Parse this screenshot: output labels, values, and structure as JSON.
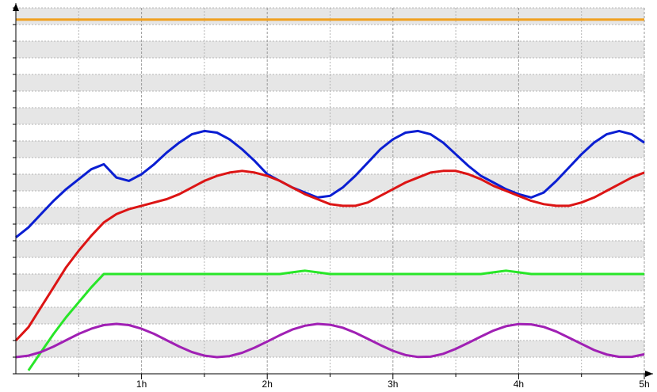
{
  "chart_data": {
    "type": "line",
    "x": [
      0,
      0.1,
      0.2,
      0.3,
      0.4,
      0.5,
      0.6,
      0.7,
      0.8,
      0.9,
      1,
      1.1,
      1.2,
      1.3,
      1.4,
      1.5,
      1.6,
      1.7,
      1.8,
      1.9,
      2,
      2.1,
      2.2,
      2.3,
      2.4,
      2.5,
      2.6,
      2.7,
      2.8,
      2.9,
      3,
      3.1,
      3.2,
      3.3,
      3.4,
      3.5,
      3.6,
      3.7,
      3.8,
      3.9,
      4,
      4.1,
      4.2,
      4.3,
      4.4,
      4.5,
      4.6,
      4.7,
      4.8,
      4.9,
      5
    ],
    "series": [
      {
        "color": "#f0a020",
        "values": [
          21.3,
          21.3,
          21.3,
          21.3,
          21.3,
          21.3,
          21.3,
          21.3,
          21.3,
          21.3,
          21.3,
          21.3,
          21.3,
          21.3,
          21.3,
          21.3,
          21.3,
          21.3,
          21.3,
          21.3,
          21.3,
          21.3,
          21.3,
          21.3,
          21.3,
          21.3,
          21.3,
          21.3,
          21.3,
          21.3,
          21.3,
          21.3,
          21.3,
          21.3,
          21.3,
          21.3,
          21.3,
          21.3,
          21.3,
          21.3,
          21.3,
          21.3,
          21.3,
          21.3,
          21.3,
          21.3,
          21.3,
          21.3,
          21.3,
          21.3,
          21.3
        ]
      },
      {
        "color": "#0a1ed2",
        "values": [
          8.2,
          8.8,
          9.6,
          10.4,
          11.1,
          11.7,
          12.3,
          12.6,
          11.8,
          11.6,
          12.0,
          12.6,
          13.3,
          13.9,
          14.4,
          14.6,
          14.5,
          14.1,
          13.5,
          12.8,
          12.0,
          11.6,
          11.2,
          10.9,
          10.6,
          10.7,
          11.2,
          11.9,
          12.7,
          13.5,
          14.1,
          14.5,
          14.6,
          14.4,
          13.9,
          13.2,
          12.5,
          11.9,
          11.5,
          11.1,
          10.8,
          10.6,
          10.9,
          11.6,
          12.4,
          13.2,
          13.9,
          14.4,
          14.6,
          14.4,
          13.9
        ]
      },
      {
        "color": "#dc1414",
        "values": [
          2.0,
          2.8,
          4.0,
          5.2,
          6.4,
          7.4,
          8.3,
          9.1,
          9.6,
          9.9,
          10.1,
          10.3,
          10.5,
          10.8,
          11.2,
          11.6,
          11.9,
          12.1,
          12.2,
          12.1,
          11.9,
          11.6,
          11.2,
          10.8,
          10.5,
          10.2,
          10.1,
          10.1,
          10.3,
          10.7,
          11.1,
          11.5,
          11.8,
          12.1,
          12.2,
          12.2,
          12.0,
          11.7,
          11.3,
          11.0,
          10.7,
          10.4,
          10.2,
          10.1,
          10.1,
          10.3,
          10.6,
          11.0,
          11.4,
          11.8,
          12.1
        ]
      },
      {
        "color": "#28e628",
        "values": [
          null,
          0.2,
          1.3,
          2.4,
          3.4,
          4.3,
          5.2,
          6.0,
          6.0,
          6.0,
          6.0,
          6.0,
          6.0,
          6.0,
          6.0,
          6.0,
          6.0,
          6.0,
          6.0,
          6.0,
          6.0,
          6.0,
          6.1,
          6.2,
          6.1,
          6.0,
          6.0,
          6.0,
          6.0,
          6.0,
          6.0,
          6.0,
          6.0,
          6.0,
          6.0,
          6.0,
          6.0,
          6.0,
          6.1,
          6.2,
          6.1,
          6.0,
          6.0,
          6.0,
          6.0,
          6.0,
          6.0,
          6.0,
          6.0,
          6.0,
          6.0
        ]
      },
      {
        "color": "#a020b4",
        "values": [
          1.0,
          1.09,
          1.31,
          1.64,
          2.02,
          2.4,
          2.71,
          2.93,
          3.0,
          2.93,
          2.71,
          2.4,
          2.02,
          1.64,
          1.31,
          1.09,
          1.0,
          1.06,
          1.26,
          1.57,
          1.94,
          2.32,
          2.66,
          2.89,
          3.0,
          2.95,
          2.77,
          2.47,
          2.1,
          1.73,
          1.38,
          1.13,
          1.01,
          1.03,
          1.2,
          1.5,
          1.86,
          2.24,
          2.6,
          2.86,
          2.99,
          2.97,
          2.82,
          2.54,
          2.17,
          1.8,
          1.43,
          1.16,
          1.02,
          1.02,
          1.17
        ]
      }
    ],
    "xlim": [
      0,
      5
    ],
    "xticks": [
      {
        "value": 1,
        "label": "1h"
      },
      {
        "value": 2,
        "label": "2h"
      },
      {
        "value": 3,
        "label": "3h"
      },
      {
        "value": 4,
        "label": "4h"
      },
      {
        "value": 5,
        "label": "5h"
      }
    ],
    "xminor_ticks": [
      0.5,
      1.5,
      2.5,
      3.5,
      4.5
    ],
    "ylim": [
      0,
      22
    ],
    "yticks": [
      0,
      1,
      2,
      3,
      4,
      5,
      6,
      7,
      8,
      9,
      10,
      11,
      12,
      13,
      14,
      15,
      16,
      17,
      18,
      19,
      20,
      21,
      22
    ],
    "grid": true,
    "banded": true
  }
}
